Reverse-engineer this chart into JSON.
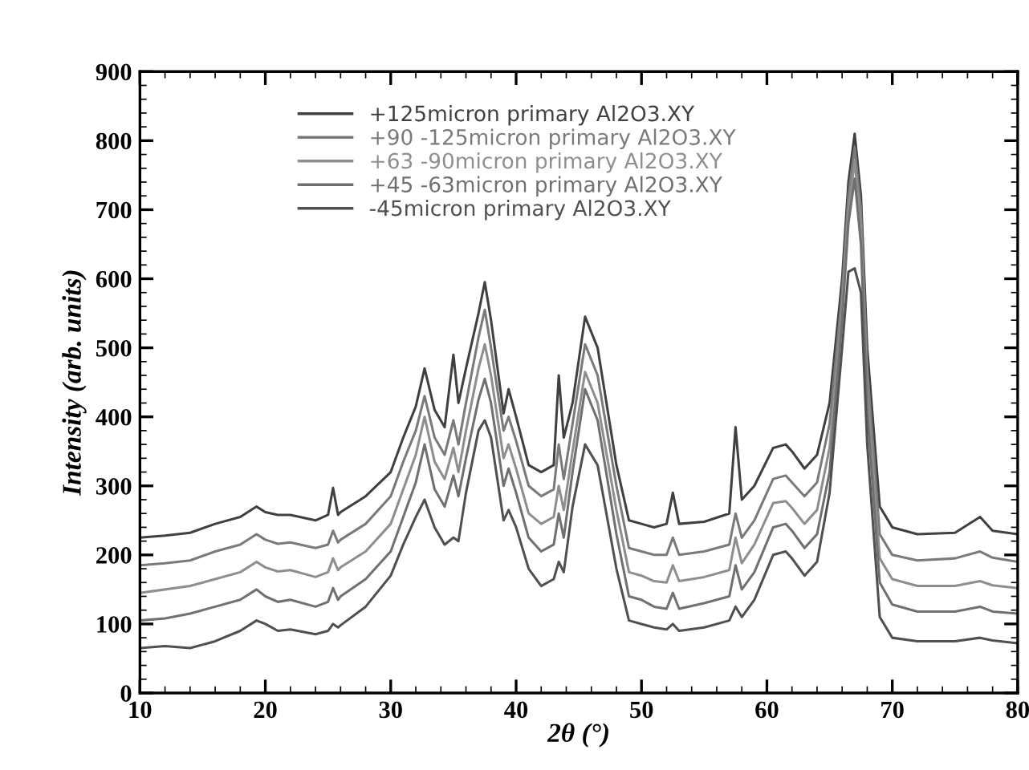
{
  "chart_data": {
    "type": "line",
    "xlabel": "2θ (°)",
    "ylabel": "Intensity (arb. units)",
    "x": [
      10,
      12,
      14,
      16,
      18,
      19.3,
      20,
      21,
      22,
      24,
      25,
      25.4,
      25.8,
      26,
      28,
      30,
      31,
      32,
      32.7,
      33.5,
      34.3,
      35,
      35.4,
      36,
      37,
      37.5,
      38,
      39,
      39.4,
      40,
      41,
      42,
      43,
      43.4,
      43.8,
      44.5,
      45.5,
      46.5,
      48,
      49,
      50,
      51,
      52,
      52.5,
      53,
      55,
      57,
      57.5,
      58,
      59,
      60.5,
      61.5,
      62,
      63,
      64,
      65,
      66,
      66.5,
      67,
      67.5,
      68,
      69,
      70,
      72,
      75,
      77,
      78,
      80
    ],
    "series": [
      {
        "name": "+125micron primary Al2O3.XY",
        "color": "#404040",
        "values": [
          225,
          228,
          232,
          245,
          255,
          270,
          262,
          258,
          258,
          250,
          258,
          297,
          258,
          262,
          285,
          320,
          370,
          415,
          470,
          410,
          385,
          490,
          420,
          470,
          550,
          595,
          540,
          405,
          440,
          400,
          330,
          320,
          330,
          460,
          370,
          420,
          545,
          500,
          330,
          250,
          245,
          240,
          245,
          290,
          245,
          248,
          260,
          385,
          280,
          300,
          355,
          360,
          350,
          325,
          345,
          420,
          600,
          740,
          810,
          720,
          500,
          270,
          240,
          230,
          232,
          255,
          235,
          230
        ]
      },
      {
        "name": "+90 -125micron primary Al2O3.XY",
        "color": "#7a7a7a",
        "values": [
          185,
          188,
          192,
          205,
          215,
          230,
          222,
          216,
          218,
          210,
          215,
          235,
          218,
          222,
          245,
          285,
          335,
          380,
          430,
          370,
          345,
          395,
          360,
          420,
          515,
          555,
          500,
          380,
          400,
          365,
          300,
          285,
          295,
          360,
          310,
          390,
          505,
          460,
          300,
          210,
          205,
          200,
          200,
          225,
          200,
          205,
          215,
          260,
          225,
          250,
          310,
          315,
          305,
          285,
          305,
          390,
          580,
          720,
          790,
          700,
          470,
          230,
          200,
          192,
          195,
          205,
          196,
          190
        ]
      },
      {
        "name": "+63 -90micron primary Al2O3.XY",
        "color": "#8e8e8e",
        "values": [
          145,
          150,
          155,
          165,
          175,
          190,
          182,
          176,
          178,
          168,
          175,
          195,
          178,
          182,
          205,
          245,
          295,
          345,
          400,
          335,
          310,
          355,
          320,
          380,
          470,
          505,
          460,
          340,
          360,
          325,
          260,
          245,
          255,
          300,
          265,
          350,
          465,
          420,
          265,
          175,
          170,
          162,
          160,
          185,
          162,
          168,
          178,
          225,
          188,
          215,
          275,
          278,
          268,
          245,
          265,
          355,
          560,
          700,
          770,
          680,
          440,
          195,
          165,
          155,
          155,
          162,
          156,
          152
        ]
      },
      {
        "name": "+45 -63micron primary Al2O3.XY",
        "color": "#707070",
        "values": [
          105,
          108,
          115,
          125,
          135,
          150,
          140,
          132,
          135,
          125,
          132,
          152,
          135,
          140,
          165,
          205,
          255,
          305,
          360,
          295,
          270,
          315,
          285,
          340,
          425,
          455,
          420,
          300,
          325,
          290,
          225,
          205,
          215,
          260,
          225,
          320,
          440,
          395,
          230,
          140,
          135,
          125,
          122,
          145,
          122,
          130,
          140,
          185,
          150,
          175,
          240,
          245,
          235,
          210,
          230,
          320,
          540,
          680,
          745,
          650,
          410,
          160,
          128,
          118,
          118,
          125,
          118,
          115
        ]
      },
      {
        "name": "-45micron primary Al2O3.XY",
        "color": "#505050",
        "values": [
          65,
          68,
          65,
          75,
          90,
          105,
          100,
          90,
          92,
          85,
          90,
          100,
          95,
          98,
          125,
          170,
          215,
          255,
          280,
          240,
          215,
          225,
          220,
          290,
          380,
          395,
          370,
          250,
          265,
          240,
          180,
          155,
          165,
          190,
          175,
          270,
          360,
          330,
          180,
          105,
          100,
          95,
          92,
          100,
          90,
          95,
          105,
          125,
          110,
          135,
          200,
          205,
          195,
          170,
          190,
          290,
          500,
          610,
          615,
          580,
          360,
          110,
          80,
          75,
          75,
          80,
          76,
          72
        ]
      }
    ],
    "xlim": [
      10,
      80
    ],
    "ylim": [
      0,
      900
    ],
    "xticks": [
      10,
      20,
      30,
      40,
      50,
      60,
      70,
      80
    ],
    "yticks": [
      0,
      100,
      200,
      300,
      400,
      500,
      600,
      700,
      800,
      900
    ],
    "legend": "top",
    "grid": false,
    "marker": "none",
    "line_style": "solid"
  }
}
